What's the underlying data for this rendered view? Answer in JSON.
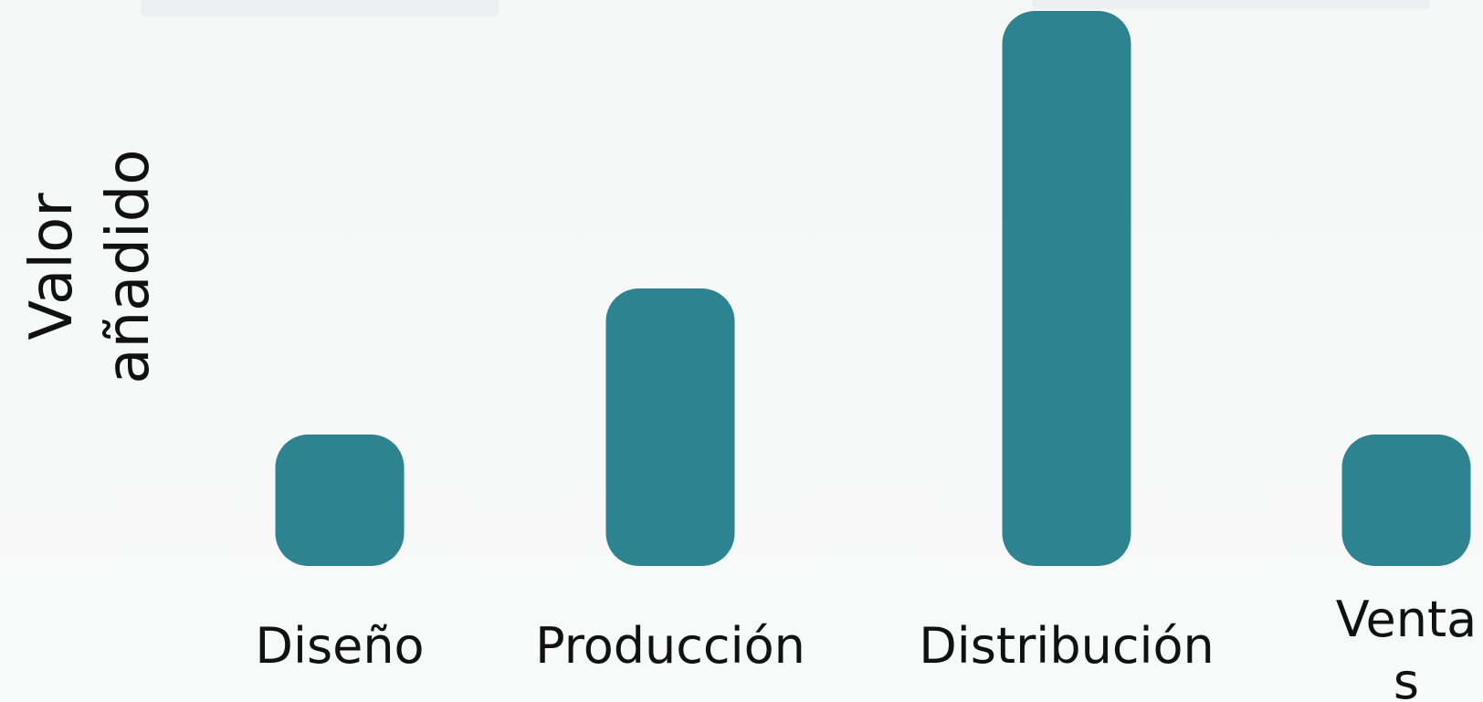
{
  "chart_data": {
    "type": "bar",
    "categories": [
      "Diseño",
      "Producción",
      "Distribución",
      "Venta s"
    ],
    "category_lines": [
      [
        "Diseño"
      ],
      [
        "Producción"
      ],
      [
        "Distribución"
      ],
      [
        "Venta",
        "s"
      ]
    ],
    "values": [
      1,
      2,
      4,
      1
    ],
    "ylabel_lines": [
      "Valor",
      "añadido"
    ],
    "xlabel": "",
    "title": "",
    "ylim": [
      0,
      4
    ],
    "grid": false,
    "legend": "none",
    "bar_color": "#2e8390"
  }
}
